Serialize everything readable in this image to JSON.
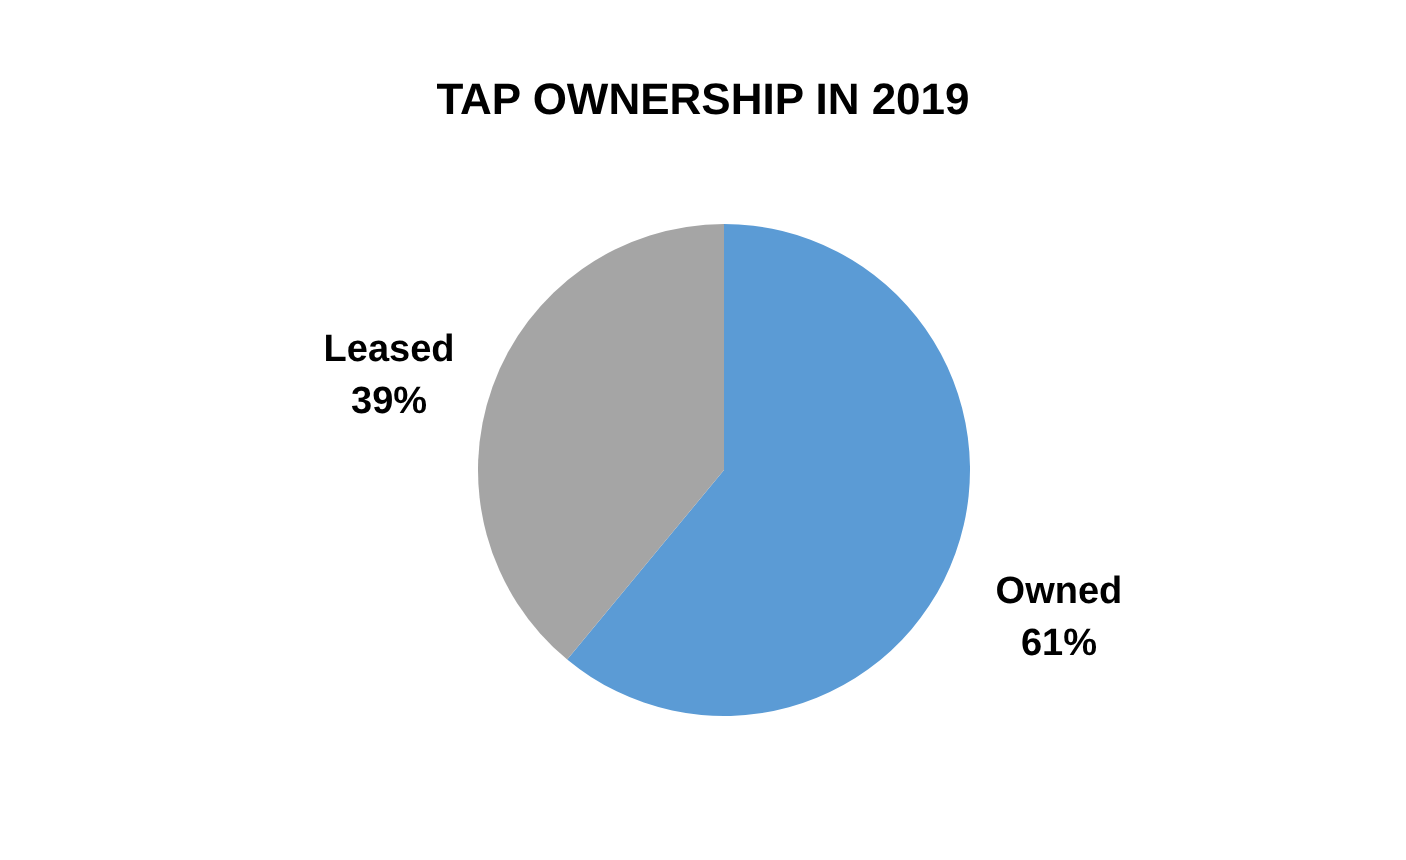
{
  "chart_data": {
    "type": "pie",
    "title": "TAP OWNERSHIP IN 2019",
    "categories": [
      "Owned",
      "Leased"
    ],
    "values": [
      61,
      39
    ],
    "value_labels": [
      "61%",
      "39%"
    ],
    "colors": [
      "#5b9bd5",
      "#a5a5a5"
    ]
  }
}
